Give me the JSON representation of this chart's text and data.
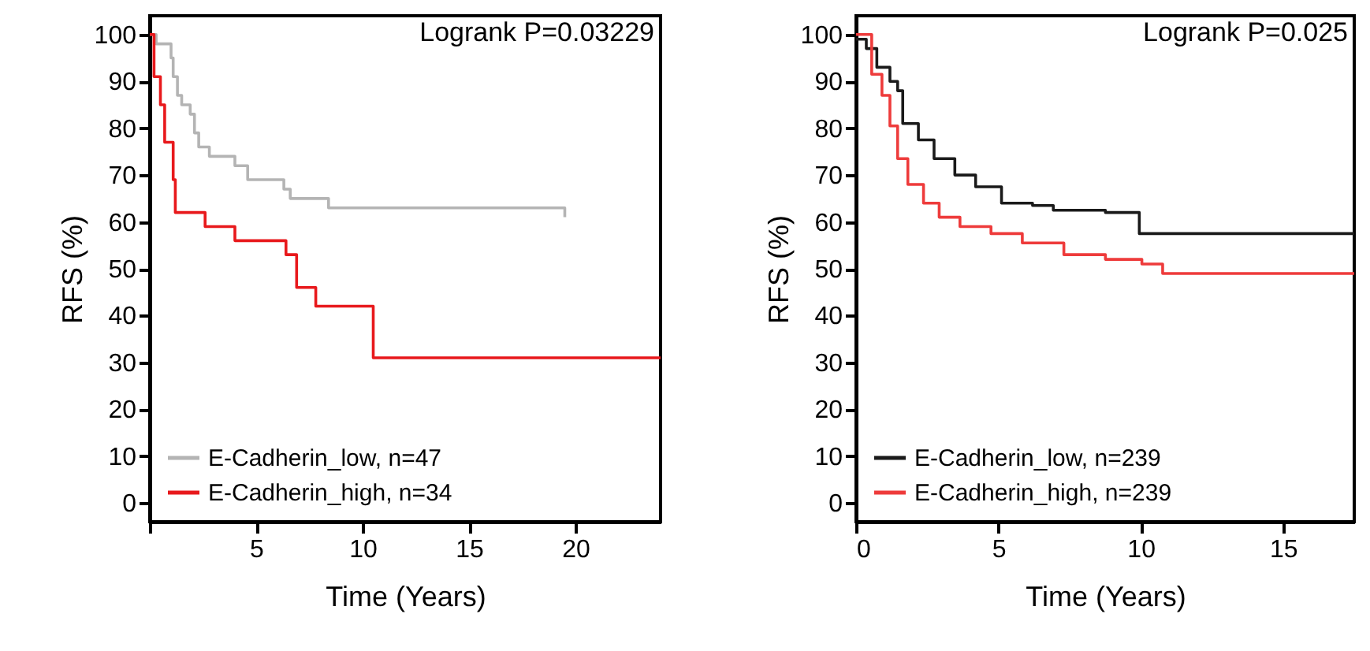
{
  "chart_data": [
    {
      "type": "step",
      "ylabel": "RFS (%)",
      "xlabel": "Time (Years)",
      "annotations": [
        "Logrank P=0.03229"
      ],
      "xlim": [
        0,
        24
      ],
      "xticks": [
        {
          "value": 0,
          "label": null
        },
        5,
        10,
        15,
        20
      ],
      "ylim": [
        -4,
        104
      ],
      "yticks": [
        0,
        10,
        20,
        30,
        40,
        50,
        60,
        70,
        80,
        90,
        100
      ],
      "grid": false,
      "legend": "bottom left",
      "series": [
        {
          "name": "E-Cadherin_low, n=47",
          "color": "#b4b4b4",
          "x": [
            0,
            0.3,
            1,
            1.1,
            1.3,
            1.5,
            1.9,
            2.1,
            2.3,
            2.8,
            4,
            4.6,
            6.3,
            6.6,
            8.4,
            19.5
          ],
          "values": [
            100,
            98,
            95,
            91,
            87,
            85,
            83,
            79,
            76,
            74,
            72,
            69,
            67,
            65,
            63,
            61
          ]
        },
        {
          "name": "E-Cadherin_high, n=34",
          "color": "#e8191c",
          "x": [
            0,
            0.2,
            0.5,
            0.7,
            1.1,
            1.2,
            2.6,
            4,
            6.4,
            6.9,
            7.8,
            10.5,
            24
          ],
          "values": [
            100,
            91,
            85,
            77,
            69,
            62,
            59,
            56,
            53,
            46,
            42,
            31,
            31
          ]
        }
      ]
    },
    {
      "type": "step",
      "ylabel": "RFS (%)",
      "xlabel": "Time (Years)",
      "annotations": [
        "Logrank P=0.025"
      ],
      "xlim": [
        0,
        17.5
      ],
      "xticks": [
        0,
        5,
        10,
        15
      ],
      "ylim": [
        -4,
        104
      ],
      "yticks": [
        0,
        10,
        20,
        30,
        40,
        50,
        60,
        70,
        80,
        90,
        100
      ],
      "grid": false,
      "legend": "bottom left",
      "series": [
        {
          "name": "E-Cadherin_low, n=239",
          "color": "#1a1a1a",
          "x": [
            0,
            0.36,
            0.73,
            1.19,
            1.46,
            1.64,
            2.19,
            2.74,
            3.47,
            4.2,
            5.11,
            6.2,
            6.93,
            8.76,
            9.95,
            17.5
          ],
          "values": [
            99,
            97,
            93,
            90,
            88,
            81,
            77.5,
            73.5,
            70,
            67.5,
            64,
            63.5,
            62.5,
            62,
            57.5,
            57.5
          ]
        },
        {
          "name": "E-Cadherin_high, n=239",
          "color": "#ee3b3b",
          "x": [
            0,
            0.55,
            0.91,
            1.19,
            1.46,
            1.82,
            2.37,
            2.92,
            3.65,
            4.74,
            5.84,
            7.3,
            8.76,
            10.04,
            10.77,
            17.5
          ],
          "values": [
            100,
            91.5,
            87,
            80.5,
            73.5,
            68,
            64,
            61,
            59,
            57.5,
            55.5,
            53,
            52,
            51,
            49,
            49
          ]
        }
      ]
    }
  ]
}
